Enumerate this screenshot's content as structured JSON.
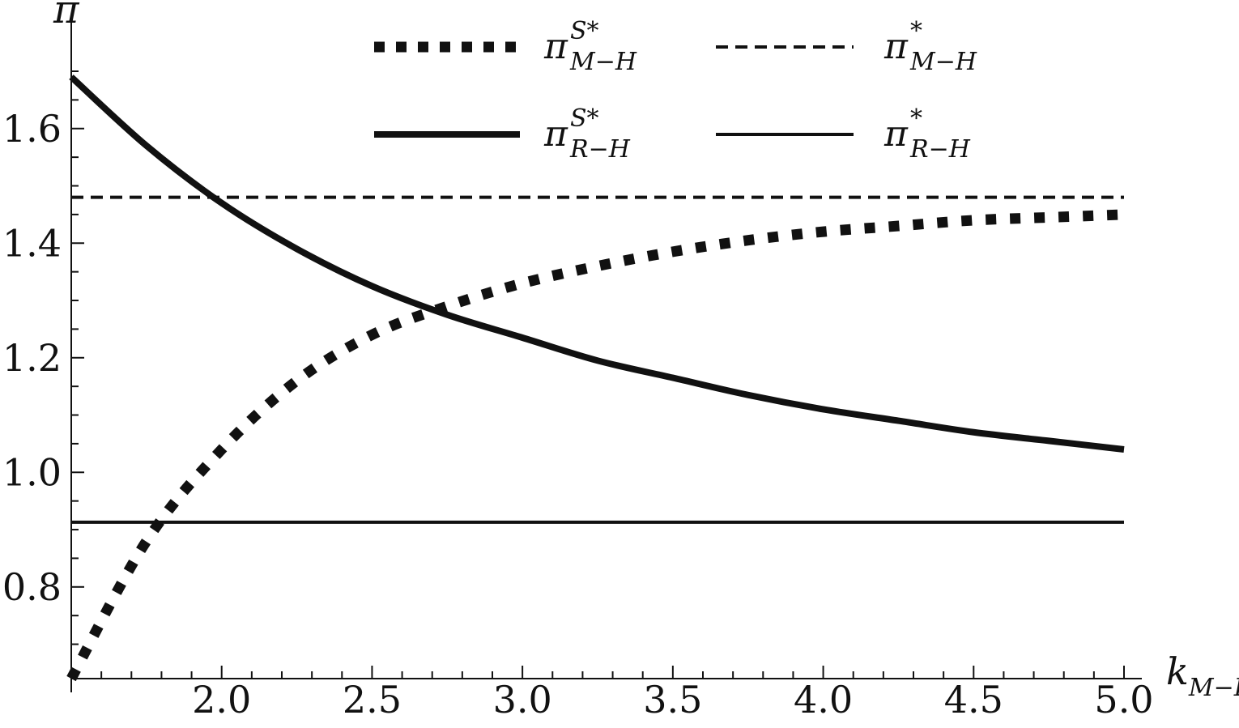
{
  "chart_data": {
    "type": "line",
    "xlabel": "k",
    "xlabel_sub": "M−L",
    "ylabel": "π",
    "xlim": [
      1.5,
      5.0
    ],
    "ylim": [
      0.64,
      1.7
    ],
    "x_ticks": [
      2.0,
      2.5,
      3.0,
      3.5,
      4.0,
      4.5,
      5.0
    ],
    "x_tick_labels": [
      "2.0",
      "2.5",
      "3.0",
      "3.5",
      "4.0",
      "4.5",
      "5.0"
    ],
    "y_ticks": [
      0.8,
      1.0,
      1.2,
      1.4,
      1.6
    ],
    "y_tick_labels": [
      "0.8",
      "1.0",
      "1.2",
      "1.4",
      "1.6"
    ],
    "grid": false,
    "legend_position": "top",
    "series": [
      {
        "name": "π^{S*}_{M−H}",
        "style": "thick-dotted",
        "x": [
          1.5,
          1.75,
          2.0,
          2.25,
          2.5,
          2.75,
          3.0,
          3.25,
          3.5,
          3.75,
          4.0,
          4.25,
          4.5,
          4.75,
          5.0
        ],
        "y": [
          0.64,
          0.88,
          1.04,
          1.16,
          1.24,
          1.29,
          1.33,
          1.36,
          1.385,
          1.405,
          1.42,
          1.43,
          1.44,
          1.445,
          1.45
        ]
      },
      {
        "name": "π^{*}_{M−H}",
        "style": "dashed",
        "x": [
          1.5,
          5.0
        ],
        "y": [
          1.48,
          1.48
        ]
      },
      {
        "name": "π^{S*}_{R−H}",
        "style": "thick-solid",
        "x": [
          1.5,
          1.75,
          2.0,
          2.25,
          2.5,
          2.75,
          3.0,
          3.25,
          3.5,
          3.75,
          4.0,
          4.25,
          4.5,
          4.75,
          5.0
        ],
        "y": [
          1.69,
          1.57,
          1.47,
          1.39,
          1.325,
          1.275,
          1.235,
          1.195,
          1.165,
          1.135,
          1.11,
          1.09,
          1.07,
          1.055,
          1.04
        ]
      },
      {
        "name": "π^{*}_{R−H}",
        "style": "thin-solid",
        "x": [
          1.5,
          5.0
        ],
        "y": [
          0.913,
          0.913
        ]
      }
    ],
    "legend": [
      {
        "symbol": "π",
        "sup": "S*",
        "sub": "M−H",
        "style": "thick-dotted"
      },
      {
        "symbol": "π",
        "sup": "*",
        "sub": "M−H",
        "style": "dashed"
      },
      {
        "symbol": "π",
        "sup": "S*",
        "sub": "R−H",
        "style": "thick-solid"
      },
      {
        "symbol": "π",
        "sup": "*",
        "sub": "R−H",
        "style": "thin-solid"
      }
    ]
  }
}
